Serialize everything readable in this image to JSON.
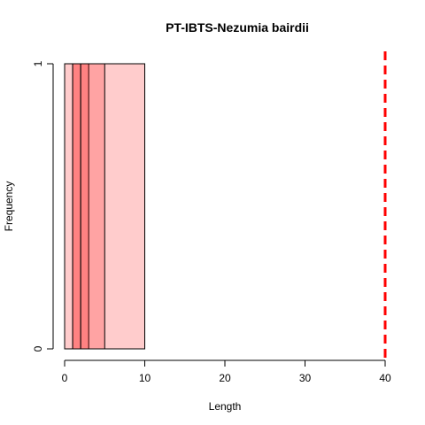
{
  "chart_data": {
    "type": "bar",
    "title": "PT-IBTS-Nezumia bairdii",
    "xlabel": "Length",
    "ylabel": "Frequency",
    "xlim": [
      0,
      40
    ],
    "ylim": [
      0,
      1
    ],
    "x_ticks": [
      "0",
      "10",
      "20",
      "30",
      "40"
    ],
    "y_ticks": [
      "0",
      "1"
    ],
    "grid": false,
    "fill_color": "#ff000033",
    "bars": [
      {
        "x0": 0,
        "x1": 10,
        "value": 1
      },
      {
        "x0": 1,
        "x1": 3,
        "value": 1
      },
      {
        "x0": 2,
        "x1": 5,
        "value": 1
      },
      {
        "x0": 1,
        "x1": 2,
        "value": 1
      }
    ],
    "reference_line": {
      "x": 40,
      "color": "#ff0000",
      "style": "dashed"
    }
  }
}
